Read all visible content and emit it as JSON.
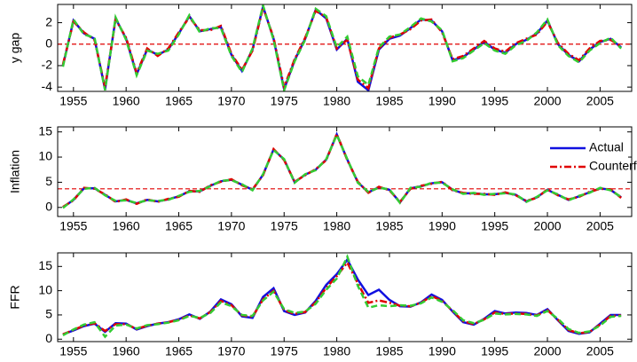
{
  "chart_data": [
    {
      "type": "line",
      "ylabel": "y gap",
      "x": [
        1954,
        1955,
        1956,
        1957,
        1958,
        1959,
        1960,
        1961,
        1962,
        1963,
        1964,
        1965,
        1966,
        1967,
        1968,
        1969,
        1970,
        1971,
        1972,
        1973,
        1974,
        1975,
        1976,
        1977,
        1978,
        1979,
        1980,
        1981,
        1982,
        1983,
        1984,
        1985,
        1986,
        1987,
        1988,
        1989,
        1990,
        1991,
        1992,
        1993,
        1994,
        1995,
        1996,
        1997,
        1998,
        1999,
        2000,
        2001,
        2002,
        2003,
        2004,
        2005,
        2006,
        2007
      ],
      "series": [
        {
          "name": "Actual",
          "color": "#1010e0",
          "style": "solid",
          "values": [
            -2,
            2.2,
            1.0,
            0.5,
            -4.2,
            2.4,
            0.5,
            -2.8,
            -0.5,
            -1.0,
            -0.5,
            1.0,
            2.6,
            1.2,
            1.4,
            1.6,
            -1.0,
            -2.5,
            -0.5,
            3.5,
            0.5,
            -4.2,
            -1.5,
            0.5,
            3.2,
            2.4,
            -0.5,
            0.5,
            -3.5,
            -4.3,
            -0.5,
            0.5,
            0.8,
            1.5,
            2.3,
            2.2,
            1.2,
            -1.5,
            -1.2,
            -0.5,
            0.2,
            -0.5,
            -0.8,
            0,
            0.4,
            1.0,
            2.2,
            0,
            -1.0,
            -1.6,
            -0.5,
            0.2,
            0.5,
            -0.3
          ]
        },
        {
          "name": "Counterf",
          "color": "#e00000",
          "style": "dashdot",
          "values": [
            -1.9,
            2.1,
            1.1,
            0.4,
            -4.0,
            2.3,
            0.6,
            -2.7,
            -0.4,
            -1.1,
            -0.4,
            1.1,
            2.5,
            1.3,
            1.3,
            1.7,
            -0.9,
            -2.4,
            -0.6,
            3.4,
            0.6,
            -4.0,
            -1.4,
            0.6,
            3.1,
            2.5,
            -0.4,
            0.4,
            -3.3,
            -4.1,
            -0.4,
            0.6,
            0.9,
            1.4,
            2.2,
            2.3,
            1.1,
            -1.4,
            -1.1,
            -0.4,
            0.3,
            -0.4,
            -0.7,
            0.1,
            0.5,
            0.9,
            2.1,
            0.1,
            -0.9,
            -1.5,
            -0.4,
            0.3,
            0.4,
            -0.2
          ]
        },
        {
          "color": "#33cc33",
          "style": "dashed",
          "values": [
            -2.1,
            2.3,
            0.9,
            0.6,
            -4.3,
            2.5,
            0.4,
            -2.9,
            -0.6,
            -0.9,
            -0.6,
            0.9,
            2.7,
            1.1,
            1.5,
            1.5,
            -1.1,
            -2.6,
            -0.4,
            3.6,
            0.4,
            -4.3,
            -1.6,
            0.4,
            3.3,
            2.6,
            -0.3,
            0.7,
            -3.0,
            -3.8,
            -0.3,
            0.7,
            0.9,
            1.6,
            2.4,
            2.1,
            1.3,
            -1.6,
            -1.3,
            -0.6,
            0.1,
            -0.6,
            -0.9,
            -0.1,
            0.3,
            1.1,
            2.3,
            -0.1,
            -1.1,
            -1.7,
            -0.6,
            0.1,
            0.6,
            -0.4
          ]
        }
      ],
      "hline": 0,
      "hline_color": "#e00000",
      "xlim": [
        1953.5,
        2008
      ],
      "xticks": [
        1955,
        1960,
        1965,
        1970,
        1975,
        1980,
        1985,
        1990,
        1995,
        2000,
        2005
      ],
      "ylim": [
        -4.4,
        3.7
      ],
      "yticks": [
        -4,
        -2,
        0,
        2
      ]
    },
    {
      "type": "line",
      "ylabel": "Inflation",
      "x": [
        1954,
        1955,
        1956,
        1957,
        1958,
        1959,
        1960,
        1961,
        1962,
        1963,
        1964,
        1965,
        1966,
        1967,
        1968,
        1969,
        1970,
        1971,
        1972,
        1973,
        1974,
        1975,
        1976,
        1977,
        1978,
        1979,
        1980,
        1981,
        1982,
        1983,
        1984,
        1985,
        1986,
        1987,
        1988,
        1989,
        1990,
        1991,
        1992,
        1993,
        1994,
        1995,
        1996,
        1997,
        1998,
        1999,
        2000,
        2001,
        2002,
        2003,
        2004,
        2005,
        2006,
        2007
      ],
      "series": [
        {
          "name": "Actual",
          "color": "#1010e0",
          "style": "solid",
          "values": [
            0,
            1.5,
            3.8,
            3.8,
            2.5,
            1.2,
            1.5,
            0.8,
            1.5,
            1.2,
            1.6,
            2.2,
            3.2,
            3.2,
            4.3,
            5.2,
            5.5,
            4.5,
            3.5,
            6.5,
            11.5,
            9.5,
            5.0,
            6.5,
            7.5,
            9.5,
            14.5,
            9.5,
            5.0,
            3.0,
            4.0,
            3.5,
            1.0,
            3.8,
            4.2,
            4.8,
            5.0,
            3.5,
            2.8,
            2.8,
            2.6,
            2.6,
            2.9,
            2.5,
            1.2,
            2.0,
            3.5,
            2.5,
            1.5,
            2.2,
            3.0,
            3.8,
            3.5,
            2.0
          ]
        },
        {
          "name": "Counterf",
          "color": "#e00000",
          "style": "dashdot",
          "values": [
            0.1,
            1.4,
            3.9,
            3.7,
            2.6,
            1.1,
            1.6,
            0.7,
            1.6,
            1.1,
            1.7,
            2.1,
            3.3,
            3.1,
            4.4,
            5.1,
            5.6,
            4.4,
            3.6,
            6.4,
            11.6,
            9.4,
            5.1,
            6.4,
            7.6,
            9.4,
            14.6,
            9.4,
            5.1,
            2.9,
            4.1,
            3.4,
            1.1,
            3.7,
            4.3,
            4.7,
            5.1,
            3.4,
            2.9,
            2.7,
            2.7,
            2.5,
            3.0,
            2.4,
            1.3,
            1.9,
            3.6,
            2.4,
            1.6,
            2.1,
            3.1,
            3.7,
            3.6,
            1.9
          ]
        },
        {
          "color": "#33cc33",
          "style": "dashed",
          "values": [
            -0.1,
            1.6,
            3.7,
            3.9,
            2.4,
            1.3,
            1.4,
            0.9,
            1.4,
            1.3,
            1.5,
            2.3,
            3.1,
            3.3,
            4.2,
            5.3,
            5.4,
            4.6,
            3.4,
            6.6,
            11.4,
            9.6,
            4.9,
            6.6,
            7.4,
            9.6,
            14.4,
            9.6,
            4.9,
            3.1,
            3.9,
            3.6,
            0.9,
            3.9,
            4.1,
            4.9,
            4.9,
            3.6,
            2.7,
            2.9,
            2.5,
            2.7,
            2.8,
            2.6,
            1.1,
            2.1,
            3.4,
            2.6,
            1.4,
            2.3,
            2.9,
            3.9,
            3.4,
            2.1
          ]
        }
      ],
      "hline": 3.7,
      "hline_color": "#e00000",
      "legend": "upper right",
      "xlim": [
        1953.5,
        2008
      ],
      "xticks": [
        1955,
        1960,
        1965,
        1970,
        1975,
        1980,
        1985,
        1990,
        1995,
        2000,
        2005
      ],
      "ylim": [
        -1.8,
        16
      ],
      "yticks": [
        0,
        5,
        10,
        15
      ]
    },
    {
      "type": "line",
      "ylabel": "FFR",
      "x": [
        1954,
        1955,
        1956,
        1957,
        1958,
        1959,
        1960,
        1961,
        1962,
        1963,
        1964,
        1965,
        1966,
        1967,
        1968,
        1969,
        1970,
        1971,
        1972,
        1973,
        1974,
        1975,
        1976,
        1977,
        1978,
        1979,
        1980,
        1981,
        1982,
        1983,
        1984,
        1985,
        1986,
        1987,
        1988,
        1989,
        1990,
        1991,
        1992,
        1993,
        1994,
        1995,
        1996,
        1997,
        1998,
        1999,
        2000,
        2001,
        2002,
        2003,
        2004,
        2005,
        2006,
        2007
      ],
      "series": [
        {
          "name": "Actual",
          "color": "#1010e0",
          "style": "solid",
          "values": [
            1.0,
            1.8,
            2.7,
            3.2,
            1.5,
            3.3,
            3.2,
            2.0,
            2.7,
            3.2,
            3.5,
            4.1,
            5.1,
            4.2,
            5.7,
            8.2,
            7.2,
            4.7,
            4.4,
            8.7,
            10.5,
            5.8,
            5.0,
            5.5,
            7.9,
            11.2,
            13.4,
            16.4,
            12.3,
            9.1,
            10.2,
            8.1,
            6.8,
            6.7,
            7.6,
            9.2,
            8.1,
            5.7,
            3.5,
            3.0,
            4.2,
            5.8,
            5.3,
            5.5,
            5.4,
            5.0,
            6.2,
            3.9,
            1.7,
            1.1,
            1.4,
            3.2,
            5.0,
            5.0
          ]
        },
        {
          "name": "Counterf",
          "color": "#e00000",
          "style": "dashdot",
          "values": [
            1.0,
            1.9,
            2.8,
            3.3,
            1.7,
            3.1,
            3.1,
            2.1,
            2.8,
            3.2,
            3.5,
            4.0,
            4.9,
            4.3,
            5.6,
            7.9,
            7.0,
            4.9,
            4.6,
            8.2,
            10.0,
            6.0,
            5.2,
            5.6,
            7.6,
            10.6,
            13.0,
            15.8,
            11.5,
            7.5,
            8.0,
            7.5,
            6.9,
            6.8,
            7.5,
            8.9,
            7.9,
            5.8,
            3.7,
            3.1,
            4.1,
            5.5,
            5.2,
            5.3,
            5.2,
            4.9,
            6.0,
            4.0,
            1.9,
            1.2,
            1.5,
            3.0,
            4.8,
            4.9
          ]
        },
        {
          "color": "#33cc33",
          "style": "dashed",
          "values": [
            0.8,
            2.0,
            3.0,
            3.5,
            0.5,
            2.8,
            3.0,
            2.2,
            2.9,
            3.1,
            3.4,
            3.9,
            4.8,
            4.4,
            5.4,
            7.6,
            6.8,
            5.0,
            4.8,
            8.0,
            9.8,
            6.2,
            5.4,
            5.7,
            7.3,
            10.2,
            12.5,
            17.0,
            11.0,
            6.5,
            7.0,
            6.8,
            7.0,
            6.9,
            7.4,
            8.6,
            7.7,
            6.0,
            3.9,
            3.3,
            4.0,
            5.3,
            5.1,
            5.2,
            5.1,
            4.8,
            5.8,
            4.2,
            2.1,
            1.3,
            1.6,
            2.8,
            4.6,
            4.8
          ]
        }
      ],
      "xlim": [
        1953.5,
        2008
      ],
      "xticks": [
        1955,
        1960,
        1965,
        1970,
        1975,
        1980,
        1985,
        1990,
        1995,
        2000,
        2005
      ],
      "ylim": [
        -0.5,
        17.8
      ],
      "yticks": [
        0,
        5,
        10,
        15
      ]
    }
  ]
}
